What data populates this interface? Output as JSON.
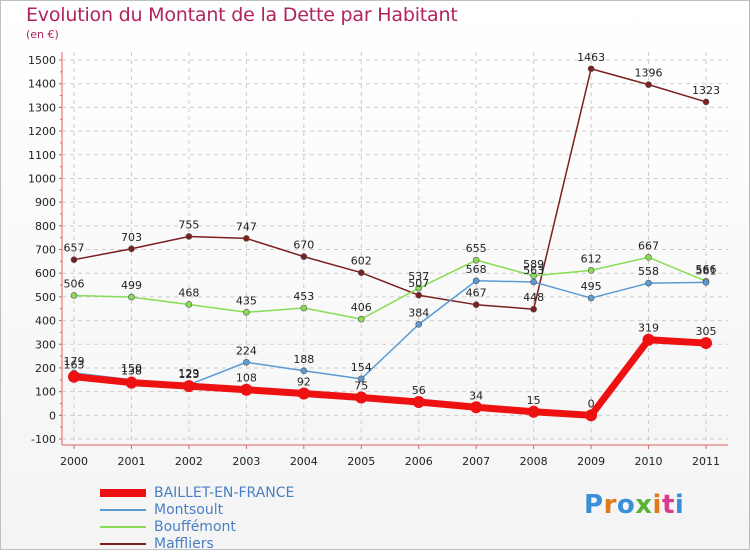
{
  "chart_data": {
    "type": "line",
    "title": "Evolution du Montant de la Dette par Habitant",
    "unit_label": "(en €)",
    "xlabel": "",
    "ylabel": "",
    "categories": [
      "2000",
      "2001",
      "2002",
      "2003",
      "2004",
      "2005",
      "2006",
      "2007",
      "2008",
      "2009",
      "2010",
      "2011"
    ],
    "ylim": [
      -100,
      1500
    ],
    "yticks": [
      -100,
      0,
      100,
      200,
      300,
      400,
      500,
      600,
      700,
      800,
      900,
      1000,
      1100,
      1200,
      1300,
      1400,
      1500
    ],
    "grid": "horizontal dashed",
    "legend_position": "bottom-left",
    "series": [
      {
        "name": "BAILLET-EN-FRANCE",
        "color": "#ee1111",
        "values": [
          163,
          138,
          123,
          108,
          92,
          75,
          56,
          34,
          15,
          0,
          319,
          305
        ]
      },
      {
        "name": "Montsoult",
        "color": "#5b9bd5",
        "values": [
          179,
          150,
          129,
          224,
          188,
          154,
          384,
          568,
          563,
          495,
          558,
          561
        ]
      },
      {
        "name": "Bouffémont",
        "color": "#88dd55",
        "values": [
          506,
          499,
          468,
          435,
          453,
          406,
          537,
          655,
          589,
          612,
          667,
          566
        ]
      },
      {
        "name": "Maffliers",
        "color": "#7b1f1f",
        "values": [
          657,
          703,
          755,
          747,
          670,
          602,
          507,
          467,
          448,
          1463,
          1396,
          1323
        ]
      }
    ]
  },
  "branding": {
    "logo_text": "Proxiti",
    "logo_colors": [
      "#3a8fd8",
      "#e07a1b",
      "#3a8fd8",
      "#5bb336",
      "#e07a1b",
      "#d93a8e",
      "#3a8fd8"
    ]
  }
}
